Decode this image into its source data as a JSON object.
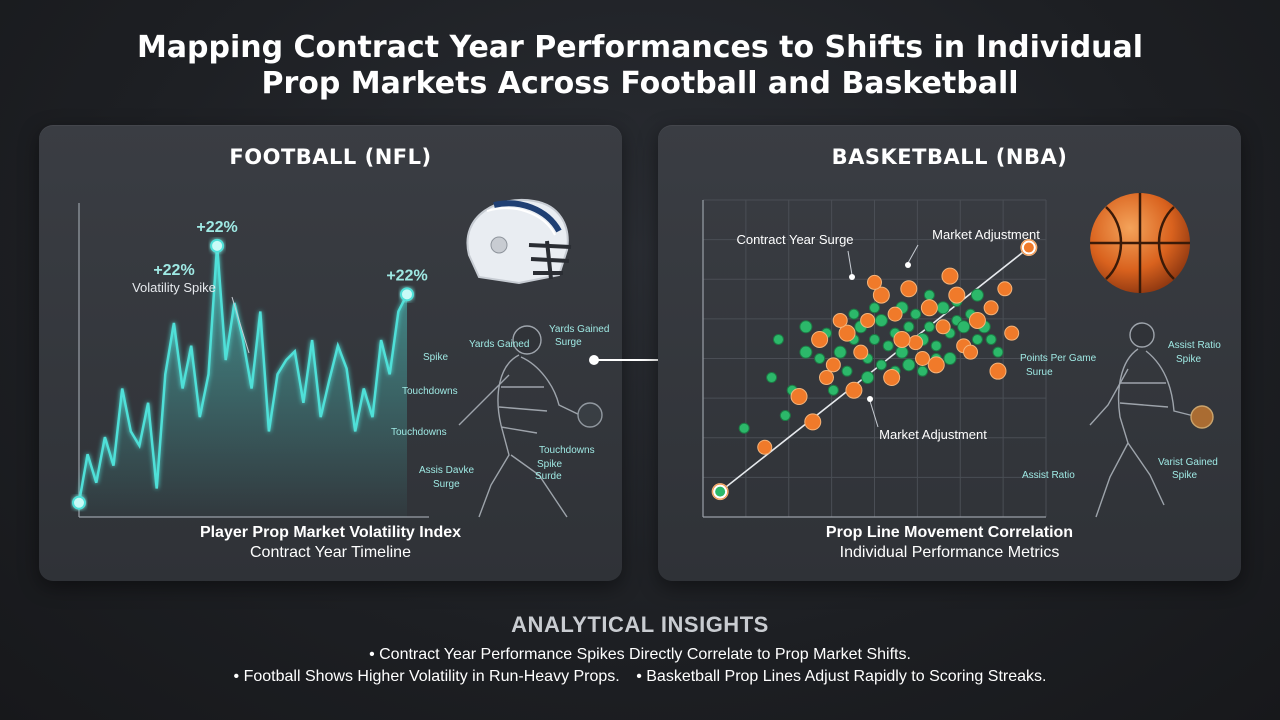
{
  "title": {
    "line1": "Mapping Contract Year Performances to Shifts in Individual",
    "line2": "Prop Markets Across Football and Basketball"
  },
  "colors": {
    "nfl_line": "#4fe0d8",
    "nba_orange": "#f07a2a",
    "nba_green": "#2cb86a",
    "panel_bg": "#35383d"
  },
  "football": {
    "heading": "FOOTBALL (NFL)",
    "caption_line1": "Player Prop Market Volatility Index",
    "caption_line2": "Contract Year Timeline",
    "icon": "football-helmet-icon",
    "figure_labels": [
      "Yards Gained",
      "Spike",
      "Yards Gained",
      "Surge",
      "Touchdowns",
      "Touchdowns",
      "Touchdowns",
      "Spike",
      "Surde",
      "Assis Davke",
      "Surge"
    ]
  },
  "basketball": {
    "heading": "BASKETBALL (NBA)",
    "caption_line1": "Prop Line Movement Correlation",
    "caption_line2": "Individual Performance Metrics",
    "icon": "basketball-icon",
    "figure_labels": [
      "Points Per Game",
      "Surue",
      "Assist Ratio",
      "Spike",
      "Assist Ratio",
      "Varist Gained",
      "Spike"
    ]
  },
  "chart_data": [
    {
      "type": "area",
      "x": [
        0,
        1,
        2,
        3,
        4,
        5,
        6,
        7,
        8,
        9,
        10,
        11,
        12,
        13,
        14,
        15,
        16,
        17,
        18,
        19,
        20,
        21,
        22,
        23,
        24,
        25,
        26,
        27,
        28,
        29,
        30,
        31,
        32,
        33,
        34,
        35,
        36,
        37,
        38
      ],
      "values": [
        5,
        22,
        12,
        28,
        18,
        45,
        30,
        25,
        40,
        10,
        50,
        68,
        45,
        60,
        35,
        50,
        95,
        55,
        75,
        62,
        45,
        72,
        30,
        50,
        55,
        58,
        40,
        62,
        35,
        48,
        60,
        52,
        30,
        45,
        35,
        62,
        50,
        72,
        78
      ],
      "ylim": [
        0,
        110
      ],
      "annotations": [
        {
          "text": "+22%",
          "sub": "Volatility Spike",
          "x": 15,
          "y": 95
        },
        {
          "text": "+22%",
          "x": 16,
          "y": 95
        },
        {
          "text": "+22%",
          "x": 38,
          "y": 78
        }
      ],
      "title": "",
      "xlabel": "",
      "ylabel": "",
      "grid": false
    },
    {
      "type": "scatter",
      "xlim": [
        0,
        100
      ],
      "ylim": [
        0,
        100
      ],
      "grid": true,
      "trend_line": {
        "x": [
          5,
          95
        ],
        "y": [
          8,
          85
        ]
      },
      "annotations": [
        {
          "text": "Contract Year Surge",
          "x": 50,
          "y": 68
        },
        {
          "text": "Market Adjustment",
          "x": 95,
          "y": 85
        },
        {
          "text": "Market Adjustment",
          "x": 55,
          "y": 38
        }
      ],
      "series": [
        {
          "color": "orange",
          "points": [
            [
              5,
              8
            ],
            [
              18,
              22
            ],
            [
              32,
              30
            ],
            [
              38,
              48
            ],
            [
              42,
              58
            ],
            [
              48,
              62
            ],
            [
              52,
              70
            ],
            [
              56,
              64
            ],
            [
              60,
              72
            ],
            [
              62,
              55
            ],
            [
              66,
              66
            ],
            [
              70,
              60
            ],
            [
              74,
              70
            ],
            [
              76,
              54
            ],
            [
              80,
              62
            ],
            [
              84,
              66
            ],
            [
              86,
              46
            ],
            [
              90,
              58
            ],
            [
              68,
              48
            ],
            [
              64,
              50
            ],
            [
              58,
              56
            ],
            [
              46,
              52
            ],
            [
              44,
              40
            ],
            [
              36,
              44
            ],
            [
              28,
              38
            ],
            [
              50,
              74
            ],
            [
              72,
              76
            ],
            [
              78,
              52
            ],
            [
              55,
              44
            ],
            [
              40,
              62
            ],
            [
              95,
              85
            ],
            [
              88,
              72
            ],
            [
              34,
              56
            ]
          ]
        },
        {
          "color": "green",
          "points": [
            [
              5,
              8
            ],
            [
              20,
              44
            ],
            [
              26,
              40
            ],
            [
              30,
              52
            ],
            [
              34,
              50
            ],
            [
              36,
              58
            ],
            [
              40,
              52
            ],
            [
              42,
              46
            ],
            [
              44,
              56
            ],
            [
              46,
              60
            ],
            [
              48,
              50
            ],
            [
              50,
              56
            ],
            [
              52,
              62
            ],
            [
              54,
              54
            ],
            [
              56,
              58
            ],
            [
              58,
              52
            ],
            [
              60,
              60
            ],
            [
              62,
              64
            ],
            [
              64,
              56
            ],
            [
              66,
              60
            ],
            [
              68,
              54
            ],
            [
              70,
              66
            ],
            [
              72,
              58
            ],
            [
              74,
              62
            ],
            [
              76,
              60
            ],
            [
              78,
              64
            ],
            [
              80,
              56
            ],
            [
              82,
              60
            ],
            [
              84,
              56
            ],
            [
              38,
              40
            ],
            [
              48,
              44
            ],
            [
              52,
              48
            ],
            [
              56,
              46
            ],
            [
              60,
              48
            ],
            [
              64,
              46
            ],
            [
              68,
              50
            ],
            [
              72,
              50
            ],
            [
              24,
              32
            ],
            [
              22,
              56
            ],
            [
              30,
              60
            ],
            [
              44,
              64
            ],
            [
              50,
              66
            ],
            [
              58,
              66
            ],
            [
              66,
              70
            ],
            [
              74,
              68
            ],
            [
              80,
              70
            ],
            [
              12,
              28
            ],
            [
              86,
              52
            ]
          ]
        }
      ],
      "title": "",
      "xlabel": "",
      "ylabel": ""
    }
  ],
  "insights": {
    "title": "ANALYTICAL INSIGHTS",
    "line1": "• Contract Year Performance Spikes Directly Correlate to Prop Market Shifts.",
    "line2a": "• Football Shows Higher Volatility in Run-Heavy Props.",
    "line2b": "• Basketball Prop Lines Adjust Rapidly to Scoring Streaks."
  }
}
